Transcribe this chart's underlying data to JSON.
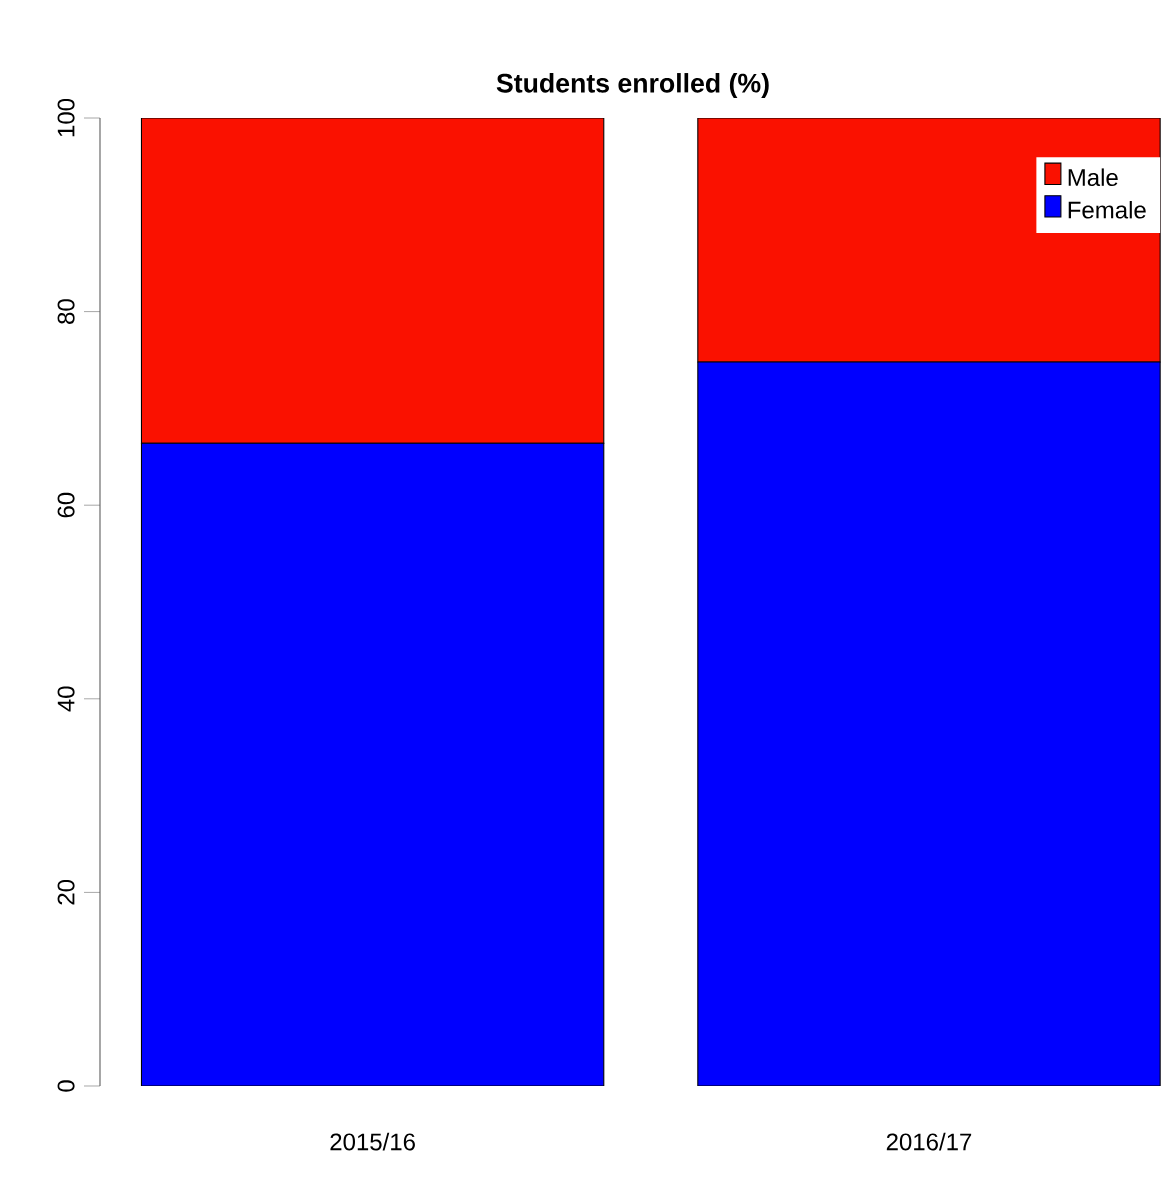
{
  "chart_data": {
    "type": "bar",
    "title": "Students enrolled (%)",
    "stacked": true,
    "categories": [
      "2015/16",
      "2016/17"
    ],
    "series": [
      {
        "name": "Female",
        "color": "#0000ff",
        "values": [
          66.4,
          74.8
        ]
      },
      {
        "name": "Male",
        "color": "#fa1100",
        "values": [
          33.6,
          25.2
        ]
      }
    ],
    "ylim": [
      0,
      100
    ],
    "yticks": [
      0,
      20,
      40,
      60,
      80,
      100
    ],
    "grid": false,
    "legend": "top right"
  }
}
